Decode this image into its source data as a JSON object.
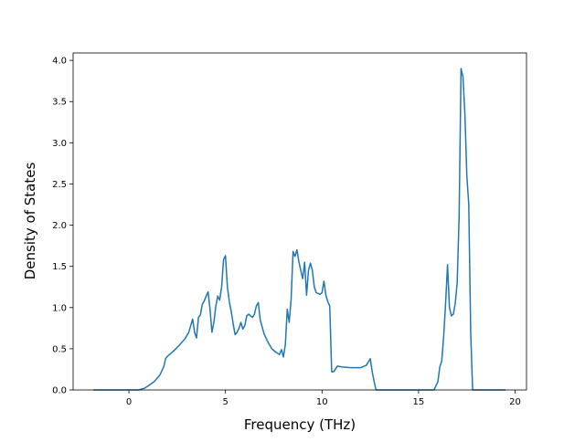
{
  "chart_data": {
    "type": "line",
    "xlabel": "Frequency (THz)",
    "ylabel": "Density of States",
    "xlim": [
      -2.89,
      20.59
    ],
    "ylim": [
      0,
      4.09
    ],
    "xticks": [
      0,
      5,
      10,
      15,
      20
    ],
    "yticks": [
      {
        "value": 0,
        "label": "0.0"
      },
      {
        "value": 0.5,
        "label": "0.5"
      },
      {
        "value": 1,
        "label": "1.0"
      },
      {
        "value": 1.5,
        "label": "1.5"
      },
      {
        "value": 2,
        "label": "2.0"
      },
      {
        "value": 2.5,
        "label": "2.5"
      },
      {
        "value": 3,
        "label": "3.0"
      },
      {
        "value": 3.5,
        "label": "3.5"
      },
      {
        "value": 4,
        "label": "4.0"
      }
    ],
    "series": [
      {
        "color": "#1f77b4",
        "x": [
          -1.85,
          0,
          0.5,
          0.8,
          1.0,
          1.3,
          1.6,
          1.8,
          1.9,
          2.0,
          2.3,
          2.6,
          2.9,
          3.1,
          3.3,
          3.4,
          3.5,
          3.6,
          3.7,
          3.8,
          3.9,
          4.0,
          4.1,
          4.2,
          4.3,
          4.4,
          4.5,
          4.6,
          4.7,
          4.8,
          4.9,
          5.0,
          5.1,
          5.2,
          5.3,
          5.4,
          5.5,
          5.6,
          5.7,
          5.8,
          5.9,
          6.0,
          6.1,
          6.2,
          6.3,
          6.4,
          6.5,
          6.6,
          6.7,
          6.8,
          7.0,
          7.2,
          7.4,
          7.6,
          7.8,
          7.9,
          8.0,
          8.1,
          8.2,
          8.3,
          8.4,
          8.5,
          8.6,
          8.7,
          8.8,
          8.9,
          9.0,
          9.1,
          9.2,
          9.3,
          9.4,
          9.5,
          9.6,
          9.7,
          9.9,
          10.0,
          10.1,
          10.2,
          10.3,
          10.4,
          10.5,
          10.6,
          10.8,
          11.0,
          11.5,
          12.0,
          12.3,
          12.5,
          12.6,
          12.7,
          12.8,
          15.8,
          16.0,
          16.1,
          16.2,
          16.3,
          16.4,
          16.5,
          16.6,
          16.7,
          16.8,
          16.9,
          17.0,
          17.1,
          17.2,
          17.3,
          17.4,
          17.5,
          17.6,
          17.7,
          17.8,
          19.5
        ],
        "values": [
          0,
          0,
          0,
          0.02,
          0.05,
          0.1,
          0.18,
          0.28,
          0.38,
          0.41,
          0.47,
          0.54,
          0.62,
          0.7,
          0.86,
          0.7,
          0.63,
          0.88,
          0.91,
          1.04,
          1.08,
          1.14,
          1.19,
          0.98,
          0.7,
          0.82,
          1.02,
          1.14,
          1.09,
          1.25,
          1.58,
          1.63,
          1.25,
          1.07,
          0.95,
          0.8,
          0.67,
          0.7,
          0.75,
          0.82,
          0.74,
          0.78,
          0.9,
          0.92,
          0.9,
          0.88,
          0.92,
          1.02,
          1.06,
          0.85,
          0.68,
          0.58,
          0.5,
          0.46,
          0.43,
          0.49,
          0.4,
          0.55,
          0.98,
          0.82,
          1.1,
          1.68,
          1.62,
          1.7,
          1.56,
          1.45,
          1.35,
          1.55,
          1.15,
          1.45,
          1.54,
          1.45,
          1.25,
          1.18,
          1.16,
          1.18,
          1.32,
          1.15,
          1.07,
          1.02,
          0.22,
          0.22,
          0.29,
          0.28,
          0.27,
          0.27,
          0.3,
          0.38,
          0.22,
          0.1,
          0,
          0,
          0.1,
          0.28,
          0.35,
          0.65,
          1.05,
          1.52,
          1.0,
          0.9,
          0.92,
          1.05,
          1.3,
          2.1,
          3.9,
          3.8,
          3.35,
          2.6,
          2.25,
          0.7,
          0,
          0
        ]
      }
    ]
  }
}
